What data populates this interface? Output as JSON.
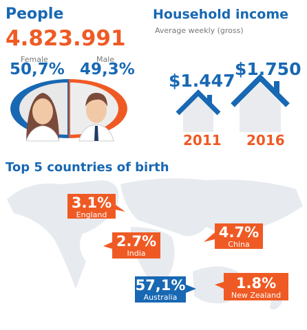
{
  "people": {
    "title": "People",
    "total": "4.823.991",
    "female": {
      "label": "Female",
      "share": "50,7%"
    },
    "male": {
      "label": "Male",
      "share": "49,3%"
    }
  },
  "income": {
    "title": "Household income",
    "subtitle": "Average weekly (gross)",
    "items": [
      {
        "amount": "$1.447",
        "year": "2011"
      },
      {
        "amount": "$1.750",
        "year": "2016"
      }
    ]
  },
  "birth": {
    "title": "Top 5 countries of birth",
    "countries": [
      {
        "share": "3.1%",
        "name": "England"
      },
      {
        "share": "2.7%",
        "name": "India"
      },
      {
        "share": "4.7%",
        "name": "China"
      },
      {
        "share": "57,1%",
        "name": "Australia"
      },
      {
        "share": "1.8%",
        "name": "New Zealand"
      }
    ]
  }
}
